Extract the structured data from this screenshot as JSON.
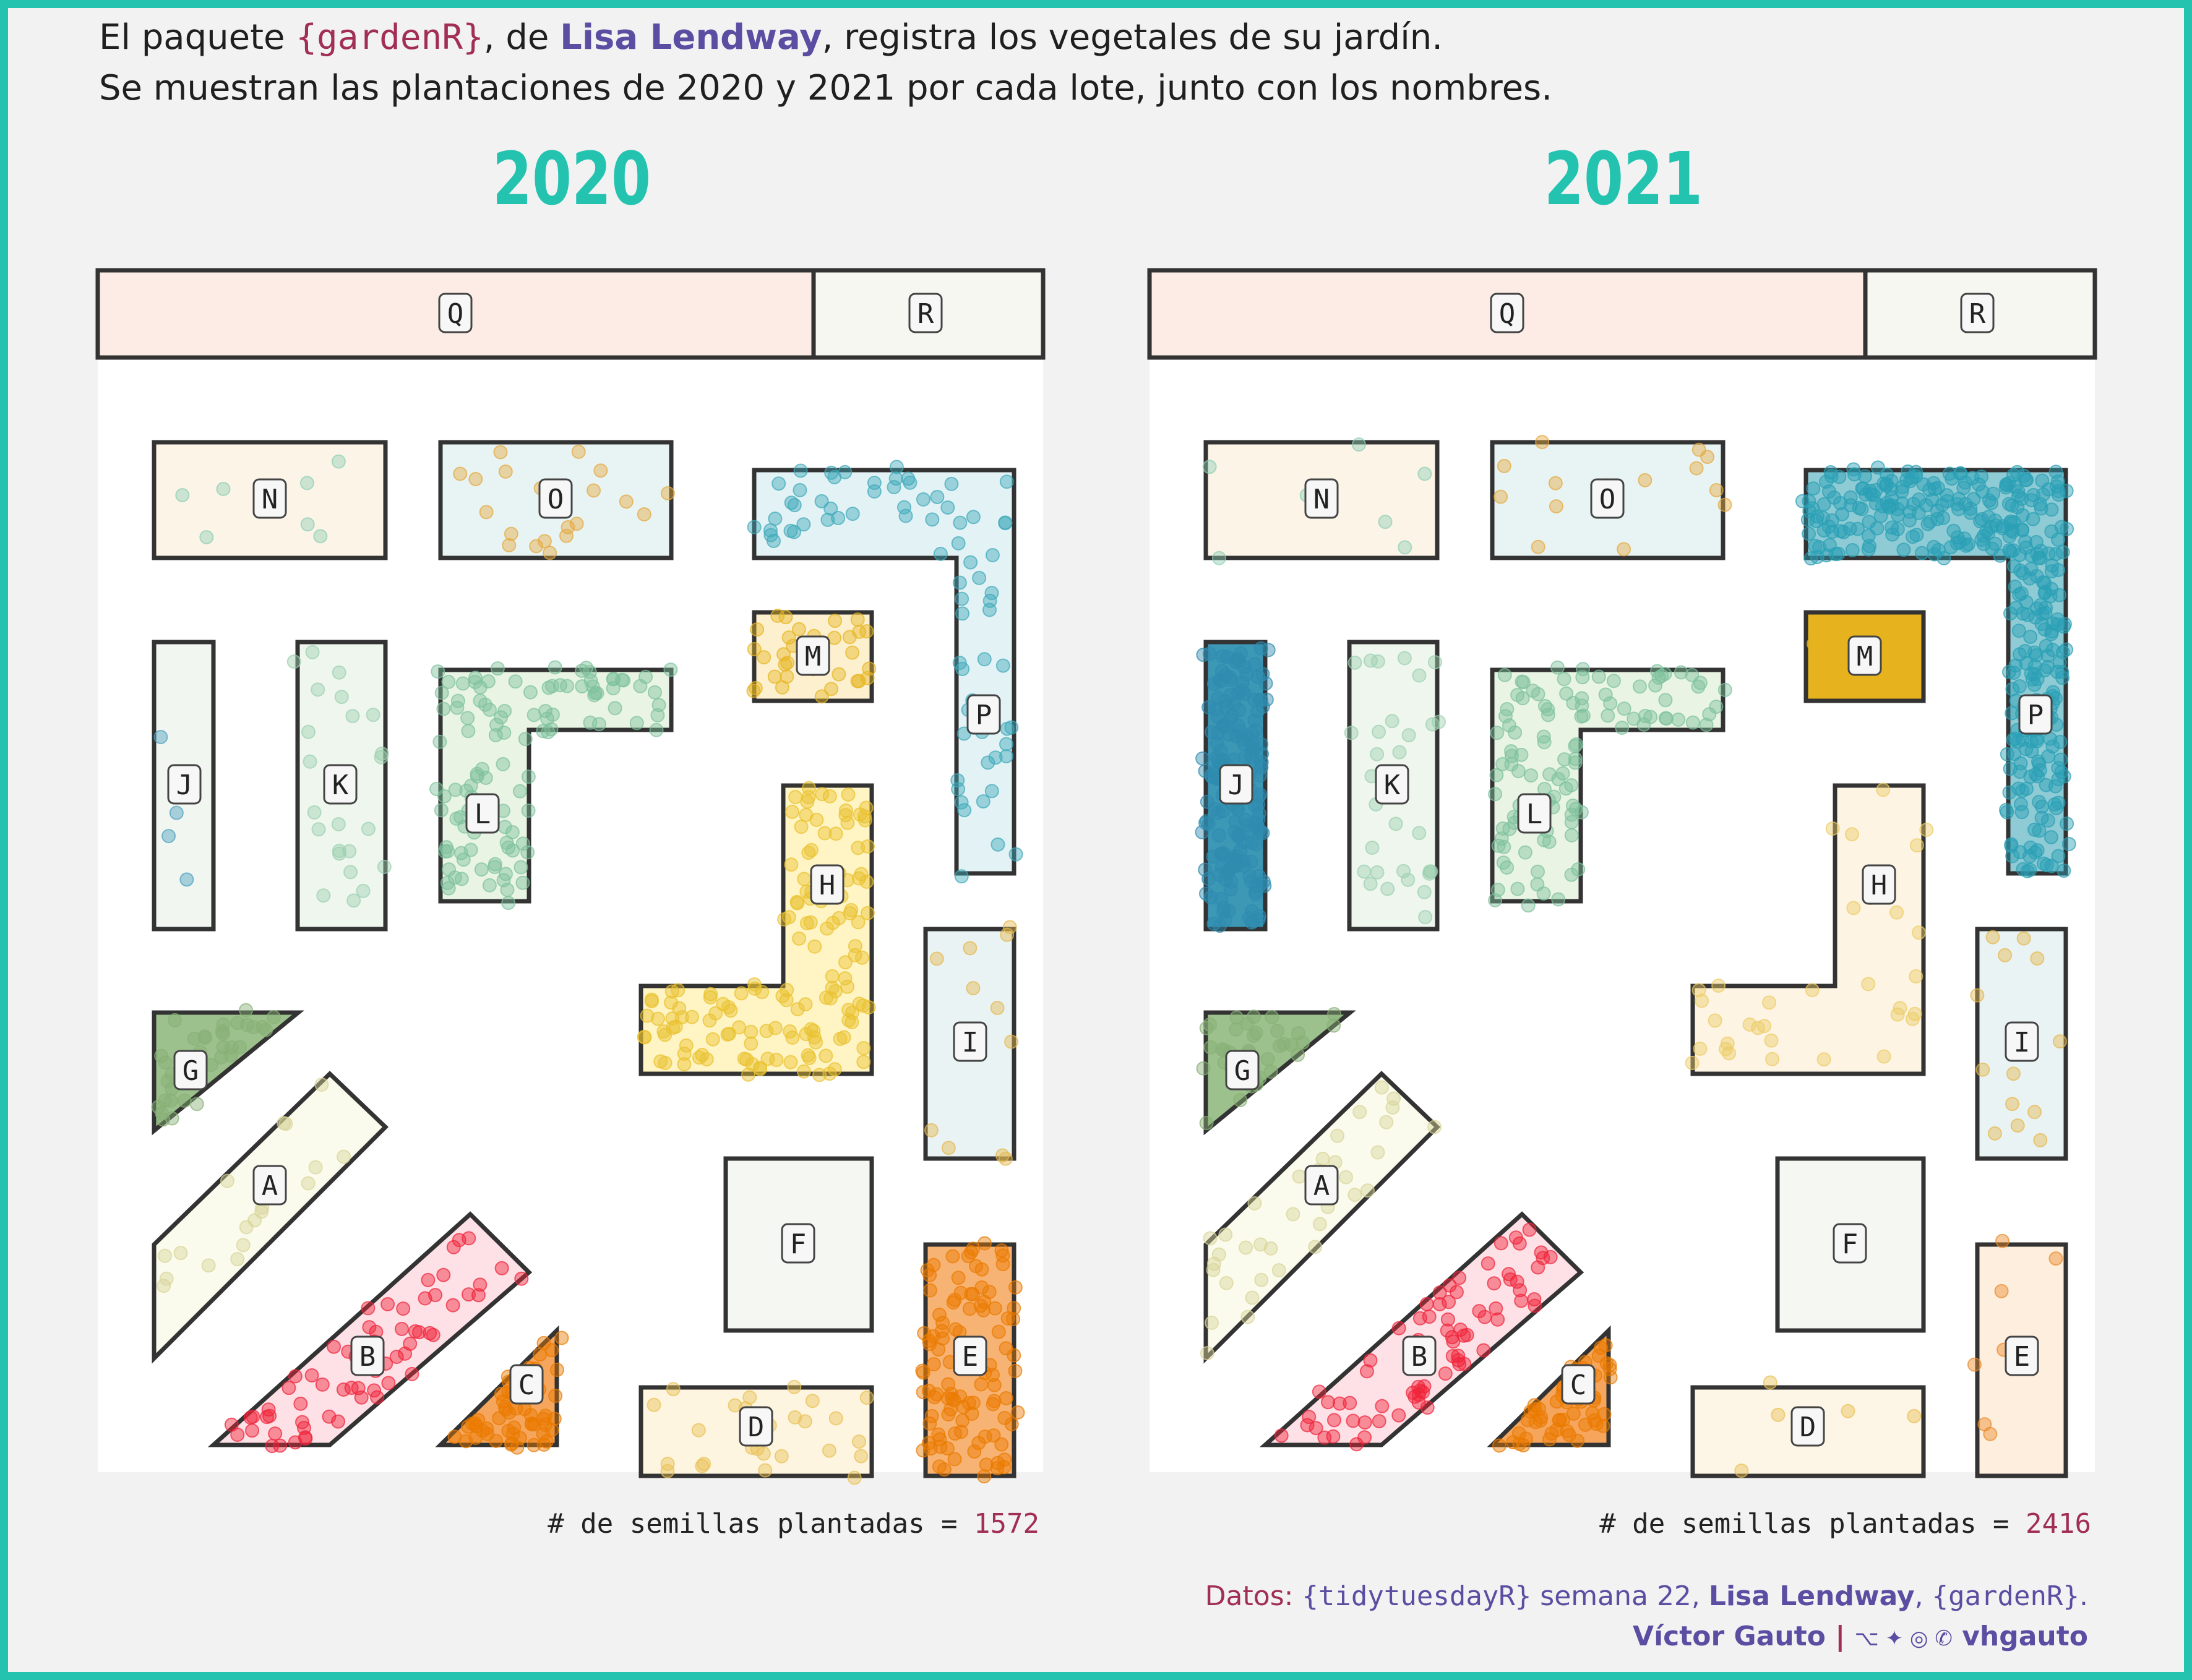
{
  "header": {
    "line1_a": "El paquete ",
    "line1_pkg": "{gardenR}",
    "line1_b": ", de ",
    "line1_author": "Lisa Lendway",
    "line1_c": ", registra los vegetales de su jardín.",
    "line2": "Se muestran las plantaciones de 2020 y 2021 por cada lote,  junto con los nombres."
  },
  "panels": [
    {
      "year": "2020",
      "count_label": "# de semillas plantadas = ",
      "count_value": "1572"
    },
    {
      "year": "2021",
      "count_label": "# de semillas plantadas = ",
      "count_value": "2416"
    }
  ],
  "credits": {
    "datos_label": "Datos: ",
    "source": "{tidytuesdayR}",
    "week": " semana 22, ",
    "author": "Lisa Lendway",
    "sep": ", ",
    "pkg": "{gardenR}",
    "end": ".",
    "name": "Víctor Gauto",
    "bar": "|",
    "icons": "⌥ ✦ ◎ ✆",
    "handle": "vhgauto"
  },
  "colors": {
    "frame": "#23c3b0",
    "year_title": "#23c3b0",
    "accent_pkg": "#a12e55",
    "author": "#5b4ea2",
    "plot_bg": "#ffffff",
    "outline": "#333333"
  },
  "chart_data": [
    {
      "type": "scatter",
      "title": "2020",
      "total_seeds": 1572,
      "plots": [
        {
          "label": "A",
          "fill": "#fbfbed",
          "dot": "#d8d49a",
          "density": 0.3
        },
        {
          "label": "B",
          "fill": "#fde1e6",
          "dot": "#f0243a",
          "density": 1.0
        },
        {
          "label": "C",
          "fill": "#f5a55c",
          "dot": "#ea7a00",
          "density": 3.2
        },
        {
          "label": "D",
          "fill": "#fdf5e0",
          "dot": "#e9c155",
          "density": 0.5
        },
        {
          "label": "E",
          "fill": "#f7b373",
          "dot": "#ea7a00",
          "density": 2.0
        },
        {
          "label": "F",
          "fill": "#f5f7f2",
          "dot": "#cccccc",
          "density": 0
        },
        {
          "label": "G",
          "fill": "#9dc18d",
          "dot": "#87b076",
          "density": 1.6
        },
        {
          "label": "H",
          "fill": "#fff4c4",
          "dot": "#e9c22e",
          "density": 1.5
        },
        {
          "label": "I",
          "fill": "#eaf3f4",
          "dot": "#e4b84e",
          "density": 0.2
        },
        {
          "label": "J",
          "fill": "#f1f6f1",
          "dot": "#4b9fbf",
          "density": 0.08
        },
        {
          "label": "K",
          "fill": "#eef6ee",
          "dot": "#9dd0b0",
          "density": 0.35
        },
        {
          "label": "L",
          "fill": "#e9f4e4",
          "dot": "#7ec29c",
          "density": 1.5
        },
        {
          "label": "M",
          "fill": "#fcf0cf",
          "dot": "#e7b522",
          "density": 1.2
        },
        {
          "label": "N",
          "fill": "#fdf4e8",
          "dot": "#8dcfb4",
          "density": 0.1
        },
        {
          "label": "O",
          "fill": "#e8f4f4",
          "dot": "#e4a83e",
          "density": 0.3
        },
        {
          "label": "P",
          "fill": "#e3f2f4",
          "dot": "#3fa9ba",
          "density": 0.7
        },
        {
          "label": "Q",
          "fill": "#fdece5",
          "dot": "#cccccc",
          "density": 0
        },
        {
          "label": "R",
          "fill": "#f7f7f1",
          "dot": "#cccccc",
          "density": 0
        }
      ]
    },
    {
      "type": "scatter",
      "title": "2021",
      "total_seeds": 2416,
      "plots": [
        {
          "label": "A",
          "fill": "#fbfbed",
          "dot": "#d8d49a",
          "density": 0.6
        },
        {
          "label": "B",
          "fill": "#fde1e6",
          "dot": "#f0243a",
          "density": 1.3
        },
        {
          "label": "C",
          "fill": "#f5a55c",
          "dot": "#ea7a00",
          "density": 3.2
        },
        {
          "label": "D",
          "fill": "#fdf5e5",
          "dot": "#e9c155",
          "density": 0.1
        },
        {
          "label": "E",
          "fill": "#fdeede",
          "dot": "#ea8a2a",
          "density": 0.15
        },
        {
          "label": "F",
          "fill": "#f5f7f2",
          "dot": "#cccccc",
          "density": 0
        },
        {
          "label": "G",
          "fill": "#9dc18d",
          "dot": "#87b076",
          "density": 1.6
        },
        {
          "label": "H",
          "fill": "#fdf4e3",
          "dot": "#eccc66",
          "density": 0.35
        },
        {
          "label": "I",
          "fill": "#eaf3f4",
          "dot": "#e4b84e",
          "density": 0.25
        },
        {
          "label": "J",
          "fill": "#3d98b6",
          "dot": "#2f8cb0",
          "density": 4.0
        },
        {
          "label": "K",
          "fill": "#eef6ee",
          "dot": "#9dd0b0",
          "density": 0.45
        },
        {
          "label": "L",
          "fill": "#e9f4e4",
          "dot": "#7ec29c",
          "density": 1.5
        },
        {
          "label": "M",
          "fill": "#e6b31e",
          "dot": "#e6b31e",
          "density": 0.4
        },
        {
          "label": "N",
          "fill": "#fdf4e8",
          "dot": "#8dcfb4",
          "density": 0.1
        },
        {
          "label": "O",
          "fill": "#e8f4f4",
          "dot": "#e4a83e",
          "density": 0.22
        },
        {
          "label": "P",
          "fill": "#8fcbd4",
          "dot": "#2a9fb5",
          "density": 3.5
        },
        {
          "label": "Q",
          "fill": "#fdece5",
          "dot": "#cccccc",
          "density": 0
        },
        {
          "label": "R",
          "fill": "#f7f7f1",
          "dot": "#cccccc",
          "density": 0
        }
      ]
    }
  ]
}
